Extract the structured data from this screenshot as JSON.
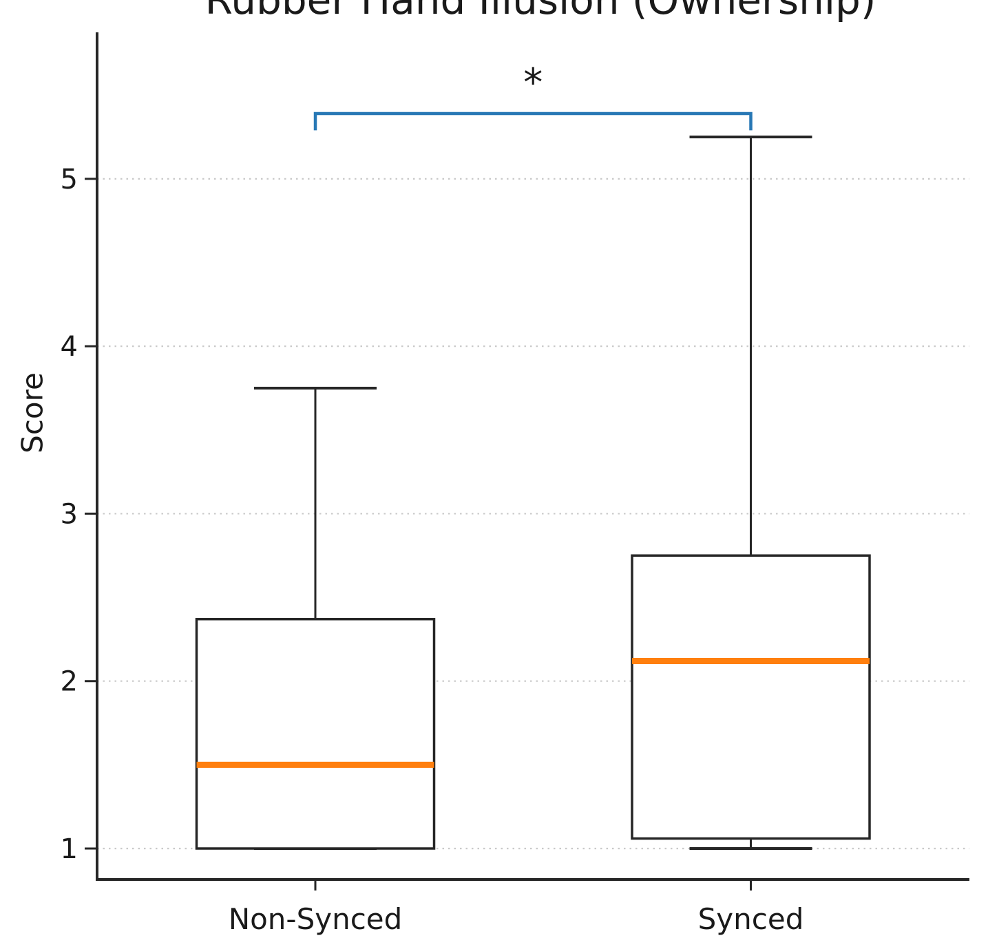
{
  "title": "Rubber Hand Illusion (Ownership)",
  "ylabel": "Score",
  "colors": {
    "median": "#ff7f0e",
    "bracket": "#2878b5",
    "line": "#262626",
    "text": "#1a1a1a",
    "grid": "#c9c9c9",
    "box_fill": "#ffffff"
  },
  "chart_data": {
    "type": "boxplot",
    "title": "Rubber Hand Illusion (Ownership)",
    "xlabel": "",
    "ylabel": "Score",
    "categories": [
      "Non-Synced",
      "Synced"
    ],
    "yticks": [
      1,
      2,
      3,
      4,
      5
    ],
    "ylim": [
      0.815,
      5.875
    ],
    "grid": "horizontal-dotted",
    "legend": "none",
    "series": [
      {
        "name": "Non-Synced",
        "whisker_low": 1.0,
        "q1": 1.0,
        "median": 1.5,
        "q3": 2.37,
        "whisker_high": 3.75
      },
      {
        "name": "Synced",
        "whisker_low": 1.0,
        "q1": 1.06,
        "median": 2.12,
        "q3": 2.75,
        "whisker_high": 5.25
      }
    ],
    "annotation": {
      "type": "significance-bracket",
      "between": [
        "Non-Synced",
        "Synced"
      ],
      "label": "*",
      "bar_y": 5.39,
      "tip_drop": 0.1,
      "label_y": 5.57
    }
  }
}
